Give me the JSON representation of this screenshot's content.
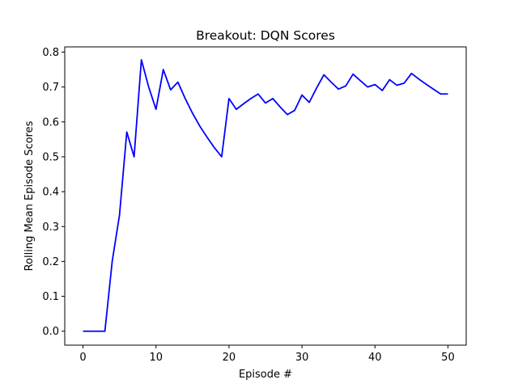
{
  "chart_data": {
    "type": "line",
    "title": "Breakout: DQN Scores",
    "xlabel": "Episode #",
    "ylabel": "Rolling Mean Episode Scores",
    "xlim": [
      -2.5,
      52.5
    ],
    "ylim": [
      -0.04,
      0.815
    ],
    "grid": false,
    "x_ticks": [
      0,
      10,
      20,
      30,
      40,
      50
    ],
    "x_tick_labels": [
      "0",
      "10",
      "20",
      "30",
      "40",
      "50"
    ],
    "y_ticks": [
      0.0,
      0.1,
      0.2,
      0.3,
      0.4,
      0.5,
      0.6,
      0.7,
      0.8
    ],
    "y_tick_labels": [
      "0.0",
      "0.1",
      "0.2",
      "0.3",
      "0.4",
      "0.5",
      "0.6",
      "0.7",
      "0.8"
    ],
    "series": [
      {
        "color": "#0000ff",
        "x": [
          0,
          1,
          2,
          3,
          4,
          5,
          6,
          7,
          8,
          9,
          10,
          11,
          12,
          13,
          14,
          15,
          16,
          17,
          18,
          19,
          20,
          21,
          22,
          23,
          24,
          25,
          26,
          27,
          28,
          29,
          30,
          31,
          32,
          33,
          34,
          35,
          36,
          37,
          38,
          39,
          40,
          41,
          42,
          43,
          44,
          45,
          46,
          47,
          48,
          49,
          50
        ],
        "values": [
          0.0,
          0.0,
          0.0,
          0.0,
          0.2,
          0.333,
          0.571,
          0.5,
          0.778,
          0.7,
          0.636,
          0.75,
          0.692,
          0.714,
          0.667,
          0.625,
          0.588,
          0.556,
          0.526,
          0.5,
          0.667,
          0.636,
          0.652,
          0.667,
          0.68,
          0.654,
          0.667,
          0.643,
          0.621,
          0.633,
          0.677,
          0.656,
          0.697,
          0.735,
          0.714,
          0.694,
          0.703,
          0.737,
          0.718,
          0.7,
          0.707,
          0.69,
          0.721,
          0.705,
          0.711,
          0.739,
          0.723,
          0.708,
          0.694,
          0.68,
          0.68
        ]
      }
    ]
  }
}
